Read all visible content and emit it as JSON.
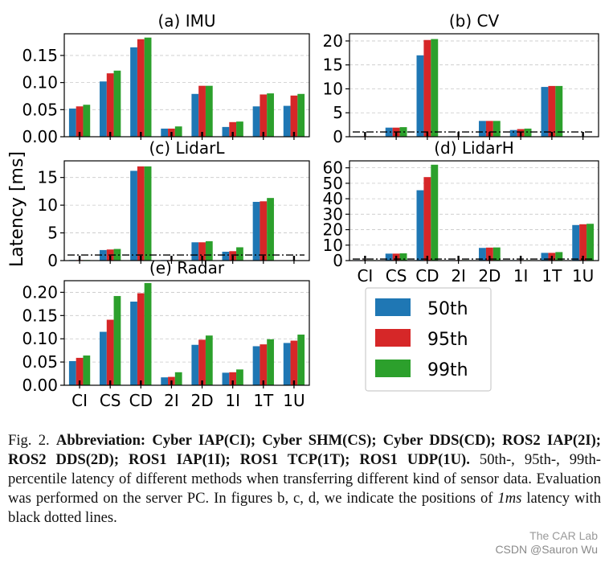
{
  "figure": {
    "ylabel": "Latency [ms]",
    "categories": [
      "CI",
      "CS",
      "CD",
      "2I",
      "2D",
      "1I",
      "1T",
      "1U"
    ],
    "series_colors": {
      "50th": "#1f77b4",
      "95th": "#d62728",
      "99th": "#2ca02c"
    },
    "legend": [
      "50th",
      "95th",
      "99th"
    ]
  },
  "chart_data": [
    {
      "type": "bar",
      "title": "(a) IMU",
      "categories": [
        "CI",
        "CS",
        "CD",
        "2I",
        "2D",
        "1I",
        "1T",
        "1U"
      ],
      "series": [
        {
          "name": "50th",
          "values": [
            0.052,
            0.102,
            0.165,
            0.015,
            0.079,
            0.018,
            0.056,
            0.057
          ]
        },
        {
          "name": "95th",
          "values": [
            0.056,
            0.117,
            0.18,
            0.015,
            0.094,
            0.027,
            0.078,
            0.076
          ]
        },
        {
          "name": "99th",
          "values": [
            0.059,
            0.122,
            0.183,
            0.019,
            0.094,
            0.028,
            0.08,
            0.079
          ]
        }
      ],
      "yticks": [
        "0.00",
        "0.05",
        "0.10",
        "0.15"
      ],
      "ytick_values": [
        0,
        0.05,
        0.1,
        0.15
      ],
      "ylim": [
        0,
        0.19
      ],
      "show_xticks": false,
      "reference_line": null
    },
    {
      "type": "bar",
      "title": "(b) CV",
      "categories": [
        "CI",
        "CS",
        "CD",
        "2I",
        "2D",
        "1I",
        "1T",
        "1U"
      ],
      "series": [
        {
          "name": "50th",
          "values": [
            0.1,
            1.9,
            17.0,
            0.1,
            3.3,
            1.4,
            10.4,
            0.0
          ]
        },
        {
          "name": "95th",
          "values": [
            0.1,
            1.9,
            20.2,
            0.1,
            3.3,
            1.6,
            10.6,
            0.0
          ]
        },
        {
          "name": "99th",
          "values": [
            0.1,
            2.0,
            20.4,
            0.1,
            3.3,
            1.7,
            10.6,
            0.0
          ]
        }
      ],
      "yticks": [
        "0",
        "5",
        "10",
        "15",
        "20"
      ],
      "ytick_values": [
        0,
        5,
        10,
        15,
        20
      ],
      "ylim": [
        0,
        21.5
      ],
      "show_xticks": false,
      "reference_line": 1
    },
    {
      "type": "bar",
      "title": "(c) LidarL",
      "categories": [
        "CI",
        "CS",
        "CD",
        "2I",
        "2D",
        "1I",
        "1T",
        "1U"
      ],
      "series": [
        {
          "name": "50th",
          "values": [
            0.1,
            1.9,
            16.2,
            0.1,
            3.3,
            1.6,
            10.6,
            0.0
          ]
        },
        {
          "name": "95th",
          "values": [
            0.1,
            2.0,
            17.0,
            0.1,
            3.3,
            1.7,
            10.7,
            0.0
          ]
        },
        {
          "name": "99th",
          "values": [
            0.1,
            2.1,
            17.0,
            0.1,
            3.5,
            2.4,
            11.3,
            0.0
          ]
        }
      ],
      "yticks": [
        "0",
        "5",
        "10",
        "15"
      ],
      "ytick_values": [
        0,
        5,
        10,
        15
      ],
      "ylim": [
        0,
        18
      ],
      "show_xticks": false,
      "reference_line": 1
    },
    {
      "type": "bar",
      "title": "(d) LidarH",
      "categories": [
        "CI",
        "CS",
        "CD",
        "2I",
        "2D",
        "1I",
        "1T",
        "1U"
      ],
      "series": [
        {
          "name": "50th",
          "values": [
            0.3,
            4.5,
            45.5,
            0.3,
            8.2,
            0.3,
            5.0,
            23.0
          ]
        },
        {
          "name": "95th",
          "values": [
            0.3,
            4.5,
            54.0,
            0.3,
            8.4,
            0.3,
            5.0,
            23.5
          ]
        },
        {
          "name": "99th",
          "values": [
            0.3,
            4.7,
            62.0,
            0.3,
            8.5,
            0.3,
            5.5,
            23.8
          ]
        }
      ],
      "yticks": [
        "0",
        "10",
        "20",
        "30",
        "40",
        "50",
        "60"
      ],
      "ytick_values": [
        0,
        10,
        20,
        30,
        40,
        50,
        60
      ],
      "ylim": [
        0,
        64.5
      ],
      "show_xticks": true,
      "reference_line": 1
    },
    {
      "type": "bar",
      "title": "(e) Radar",
      "categories": [
        "CI",
        "CS",
        "CD",
        "2I",
        "2D",
        "1I",
        "1T",
        "1U"
      ],
      "series": [
        {
          "name": "50th",
          "values": [
            0.052,
            0.115,
            0.18,
            0.017,
            0.087,
            0.027,
            0.084,
            0.091
          ]
        },
        {
          "name": "95th",
          "values": [
            0.059,
            0.141,
            0.198,
            0.018,
            0.098,
            0.028,
            0.088,
            0.096
          ]
        },
        {
          "name": "99th",
          "values": [
            0.064,
            0.192,
            0.22,
            0.028,
            0.107,
            0.034,
            0.099,
            0.109
          ]
        }
      ],
      "yticks": [
        "0.00",
        "0.05",
        "0.10",
        "0.15",
        "0.20"
      ],
      "ytick_values": [
        0,
        0.05,
        0.1,
        0.15,
        0.2
      ],
      "ylim": [
        0,
        0.225
      ],
      "show_xticks": true,
      "reference_line": null
    }
  ],
  "caption": {
    "label": "Fig. 2.",
    "bold": "Abbreviation: Cyber IAP(CI); Cyber SHM(CS); Cyber DDS(CD); ROS2 IAP(2I); ROS2 DDS(2D); ROS1 IAP(1I); ROS1 TCP(1T); ROS1 UDP(1U).",
    "text_before_unit": "50th-, 95th-, 99th- percentile latency of different methods when transferring different kind of sensor data. Evaluation was performed on the server PC. In figures b, c, d, we indicate the positions of",
    "unit": "1ms",
    "text_after_unit": "latency with black dotted lines."
  },
  "watermark": {
    "logo": "The CAR Lab",
    "credit": "CSDN @Sauron Wu"
  }
}
